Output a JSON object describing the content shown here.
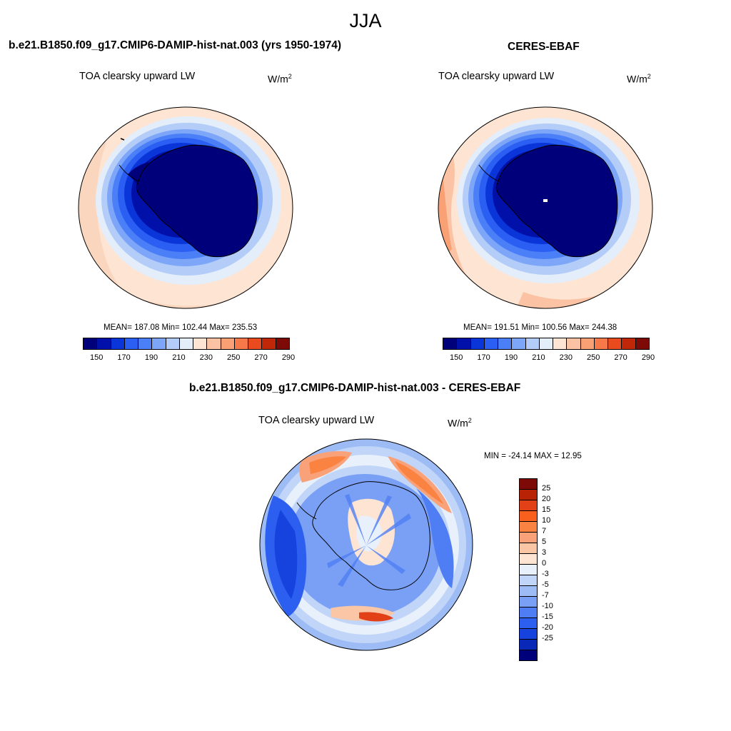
{
  "figure": {
    "season": "JJA",
    "model_title": "b.e21.B1850.f09_g17.CMIP6-DAMIP-hist-nat.003 (yrs 1950-1974)",
    "obs_title": "CERES-EBAF",
    "diff_title": "b.e21.B1850.f09_g17.CMIP6-DAMIP-hist-nat.003 - CERES-EBAF"
  },
  "panels": {
    "model": {
      "variable": "TOA clearsky upward LW",
      "units_base": "W/m",
      "units_exp": "2",
      "stats": "MEAN= 187.08  Min= 102.44  Max= 235.53"
    },
    "obs": {
      "variable": "TOA clearsky upward LW",
      "units_base": "W/m",
      "units_exp": "2",
      "stats": "MEAN= 191.51  Min= 100.56  Max= 244.38"
    },
    "diff": {
      "variable": "TOA clearsky upward LW",
      "units_base": "W/m",
      "units_exp": "2",
      "stats": "MIN = -24.14 MAX =  12.95"
    }
  },
  "abs_colorbar": {
    "colors": [
      "#00007a",
      "#0010a8",
      "#0a35d8",
      "#2b5ef2",
      "#4b7ff7",
      "#7ea6f8",
      "#b3cdf8",
      "#e4eefa",
      "#fde4d3",
      "#fbc3a4",
      "#f9a074",
      "#f77848",
      "#e94a1e",
      "#c02608",
      "#7d0a06"
    ],
    "tick_labels": [
      "150",
      "170",
      "190",
      "210",
      "230",
      "250",
      "270",
      "290"
    ]
  },
  "diff_colorbar": {
    "colors": [
      "#7d0a06",
      "#b82305",
      "#e24016",
      "#f9601e",
      "#fb8342",
      "#f9a27a",
      "#fbc6a6",
      "#fde4d3",
      "#e7f0fb",
      "#c0d5f7",
      "#9dbcf6",
      "#7aa0f5",
      "#4f7ef4",
      "#2c5ef0",
      "#1642de",
      "#0a28b8",
      "#00007a"
    ],
    "tick_labels": [
      "25",
      "20",
      "15",
      "10",
      "7",
      "5",
      "3",
      "0",
      "-3",
      "-5",
      "-7",
      "-10",
      "-15",
      "-20",
      "-25"
    ]
  }
}
